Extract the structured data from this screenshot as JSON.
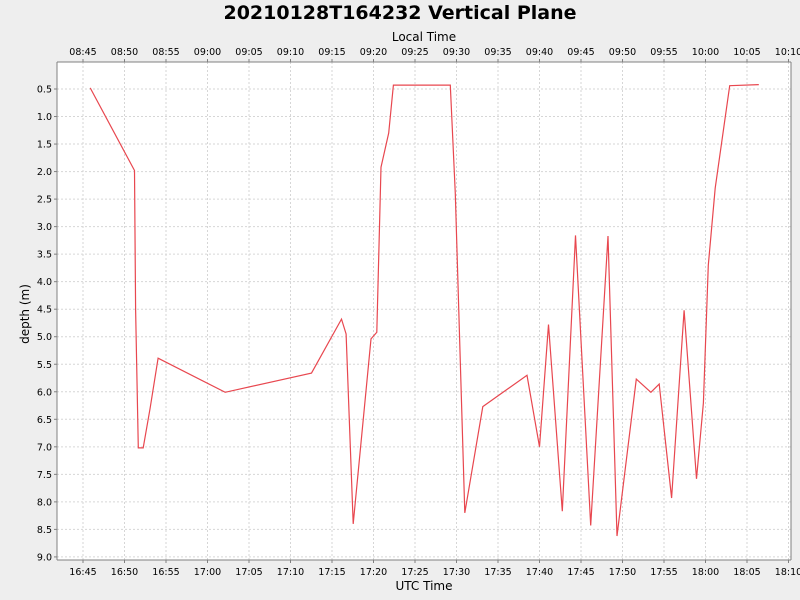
{
  "chart_data": {
    "type": "line",
    "title": "20210128T164232 Vertical Plane",
    "xlabel": "UTC Time",
    "x2label": "Local Time",
    "ylabel": "depth (m)",
    "ylim": [
      9.0,
      0.2
    ],
    "y_inverted": true,
    "grid": true,
    "series_color": "#e8474f",
    "x_ticks_utc": [
      "16:45",
      "16:50",
      "16:55",
      "17:00",
      "17:05",
      "17:10",
      "17:15",
      "17:20",
      "17:25",
      "17:30",
      "17:35",
      "17:40",
      "17:45",
      "17:50",
      "17:55",
      "18:00",
      "18:05",
      "18:10"
    ],
    "x_ticks_local": [
      "08:45",
      "08:50",
      "08:55",
      "09:00",
      "09:05",
      "09:10",
      "09:15",
      "09:20",
      "09:25",
      "09:30",
      "09:35",
      "09:40",
      "09:45",
      "09:50",
      "09:55",
      "10:00",
      "10:05",
      "10:10"
    ],
    "y_ticks": [
      "0.5",
      "1.0",
      "1.5",
      "2.0",
      "2.5",
      "3.0",
      "3.5",
      "4.0",
      "4.5",
      "5.0",
      "5.5",
      "6.0",
      "6.5",
      "7.0",
      "7.5",
      "8.0",
      "8.5",
      "9.0"
    ],
    "series": [
      {
        "x": [
          "16:45:52",
          "16:51:12",
          "16:51:20",
          "16:51:40",
          "16:52:15",
          "16:53:05",
          "16:54:03",
          "17:02:08",
          "17:12:32",
          "17:16:09",
          "17:16:42",
          "17:17:33",
          "17:19:42",
          "17:20:24",
          "17:20:54",
          "17:21:50",
          "17:22:24",
          "17:29:15",
          "17:29:51",
          "17:31:00",
          "17:33:10",
          "17:38:30",
          "17:40:00",
          "17:41:05",
          "17:42:45",
          "17:44:20",
          "17:46:10",
          "17:48:15",
          "17:49:20",
          "17:51:40",
          "17:53:25",
          "17:54:25",
          "17:55:55",
          "17:57:25",
          "17:58:55",
          "17:59:45",
          "18:00:20",
          "18:01:10",
          "18:02:55",
          "18:06:25"
        ],
        "y": [
          0.48,
          1.98,
          4.5,
          7.02,
          7.02,
          6.3,
          5.39,
          6.01,
          5.66,
          4.68,
          4.95,
          8.4,
          5.04,
          4.92,
          1.92,
          1.3,
          0.43,
          0.43,
          2.4,
          8.2,
          6.27,
          5.7,
          7.0,
          4.78,
          8.17,
          3.16,
          8.43,
          3.17,
          8.62,
          5.77,
          6.01,
          5.86,
          7.93,
          4.52,
          7.58,
          6.2,
          3.7,
          2.3,
          0.44,
          0.42
        ]
      }
    ]
  }
}
